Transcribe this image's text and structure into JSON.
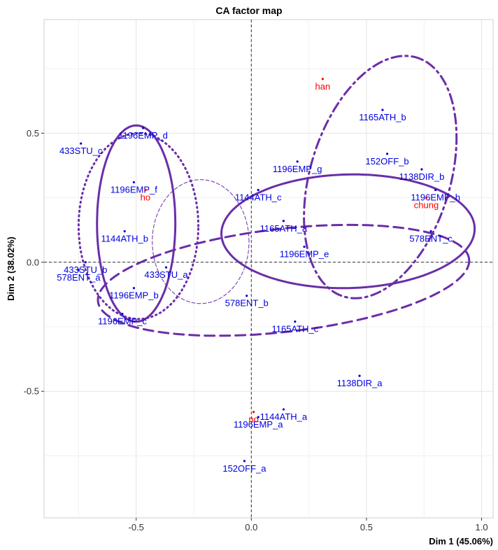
{
  "chart_data": {
    "type": "scatter",
    "title": "CA factor map",
    "xlabel": "Dim 1 (45.06%)",
    "ylabel": "Dim 2 (38.02%)",
    "xlim": [
      -0.9,
      1.05
    ],
    "ylim": [
      -0.99,
      0.94
    ],
    "x_ticks": [
      -0.5,
      0.0,
      0.5,
      1.0
    ],
    "x_tick_labels": [
      "-0.5",
      "0.0",
      "0.5",
      "1.0"
    ],
    "y_ticks": [
      -0.5,
      0.0,
      0.5
    ],
    "y_tick_labels": [
      "-0.5",
      "0.0",
      "0.5"
    ],
    "grid": true,
    "colors": {
      "rows": "#0000e0",
      "cols": "#ff0000",
      "ellipse": "#6a2ea8",
      "grid_major": "#e4e4e4",
      "grid_minor": "#f0f0f0",
      "axis": "#7a7a7a"
    },
    "series": [
      {
        "group": "rows",
        "points": [
          {
            "label": "1196EMP_d",
            "x": -0.47,
            "y": 0.52
          },
          {
            "label": "433STU_c",
            "x": -0.74,
            "y": 0.46
          },
          {
            "label": "1196EMP_f",
            "x": -0.51,
            "y": 0.31
          },
          {
            "label": "1144ATH_b",
            "x": -0.55,
            "y": 0.12
          },
          {
            "label": "433STU_b",
            "x": -0.72,
            "y": 0.0
          },
          {
            "label": "578ENT_a",
            "x": -0.75,
            "y": -0.03
          },
          {
            "label": "433STU_a",
            "x": -0.37,
            "y": -0.02
          },
          {
            "label": "1196EMP_b",
            "x": -0.51,
            "y": -0.1
          },
          {
            "label": "1196EMP_c",
            "x": -0.56,
            "y": -0.2
          },
          {
            "label": "578ENT_b",
            "x": -0.02,
            "y": -0.13
          },
          {
            "label": "1196EMP_g",
            "x": 0.2,
            "y": 0.39
          },
          {
            "label": "1144ATH_c",
            "x": 0.03,
            "y": 0.28
          },
          {
            "label": "1165ATH_a",
            "x": 0.14,
            "y": 0.16
          },
          {
            "label": "1196EMP_e",
            "x": 0.23,
            "y": 0.06
          },
          {
            "label": "1165ATH_c",
            "x": 0.19,
            "y": -0.23
          },
          {
            "label": "1165ATH_b",
            "x": 0.57,
            "y": 0.59
          },
          {
            "label": "152OFF_b",
            "x": 0.59,
            "y": 0.42
          },
          {
            "label": "1138DIR_b",
            "x": 0.74,
            "y": 0.36
          },
          {
            "label": "1196EMP_h",
            "x": 0.8,
            "y": 0.28
          },
          {
            "label": "578ENT_c",
            "x": 0.78,
            "y": 0.12
          },
          {
            "label": "1138DIR_a",
            "x": 0.47,
            "y": -0.44
          },
          {
            "label": "1144ATH_a",
            "x": 0.14,
            "y": -0.57
          },
          {
            "label": "1196EMP_a",
            "x": 0.03,
            "y": -0.6
          },
          {
            "label": "152OFF_a",
            "x": -0.03,
            "y": -0.77
          }
        ]
      },
      {
        "group": "cols",
        "points": [
          {
            "label": "han",
            "x": 0.31,
            "y": 0.71
          },
          {
            "label": "ho",
            "x": -0.46,
            "y": 0.28
          },
          {
            "label": "chung",
            "x": 0.76,
            "y": 0.25
          },
          {
            "label": "no",
            "x": 0.01,
            "y": -0.58
          }
        ]
      }
    ],
    "ellipses": [
      {
        "cx": -0.5,
        "cy": 0.15,
        "rx": 0.38,
        "ry": 0.17,
        "rot": 1.57,
        "style": "solid",
        "width": 3
      },
      {
        "cx": -0.49,
        "cy": 0.14,
        "rx": 0.26,
        "ry": 0.36,
        "rot": 0,
        "style": "dotted",
        "width": 3
      },
      {
        "cx": -0.22,
        "cy": 0.08,
        "rx": 0.21,
        "ry": 0.24,
        "rot": 0,
        "style": "thin-dashed",
        "width": 1
      },
      {
        "cx": 0.42,
        "cy": 0.12,
        "rx": 0.55,
        "ry": 0.22,
        "rot": 0.02,
        "style": "solid",
        "width": 3
      },
      {
        "cx": 0.14,
        "cy": -0.07,
        "rx": 0.81,
        "ry": 0.2,
        "rot": 0.1,
        "style": "dashed",
        "width": 3
      },
      {
        "cx": 0.56,
        "cy": 0.33,
        "rx": 0.49,
        "ry": 0.3,
        "rot": 1.2,
        "style": "dashdot",
        "width": 3
      }
    ]
  }
}
